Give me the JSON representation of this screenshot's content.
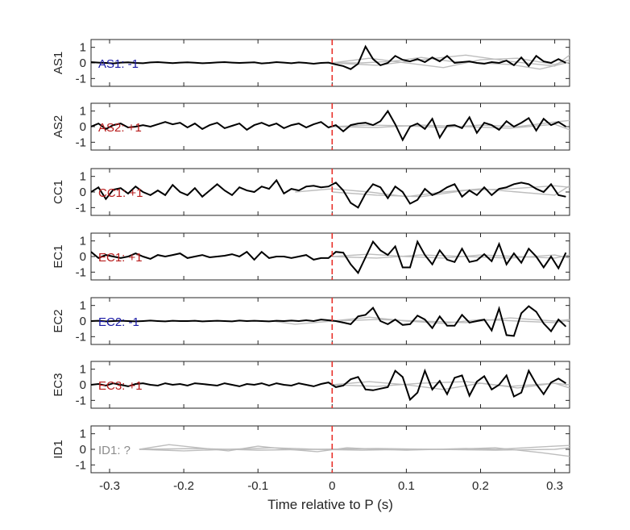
{
  "figure": {
    "xlabel": "Time relative to P (s)",
    "xlim": [
      -0.325,
      0.32
    ],
    "xticks": [
      -0.3,
      -0.2,
      -0.1,
      0,
      0.1,
      0.2,
      0.3
    ],
    "xtick_labels": [
      "-0.3",
      "-0.2",
      "-0.1",
      "0",
      "0.1",
      "0.2",
      "0.3"
    ],
    "ylim": [
      -1.5,
      1.5
    ],
    "yticks": [
      1,
      0,
      -1
    ],
    "ytick_labels": [
      "1",
      "0",
      "-1"
    ],
    "colors": {
      "trace": "#000000",
      "overlay": "#bdbdbd",
      "marker": "#e8302a",
      "negative": "#1b1ba6",
      "positive": "#b81c1c",
      "unknown": "#8c8c8c",
      "axis": "#262626"
    }
  },
  "chart_data": [
    {
      "type": "line",
      "panel": "AS1",
      "ylabel": "AS1",
      "polarity_label": "AS1: -1",
      "polarity": "negative",
      "marker_x": 0,
      "x": [
        -0.325,
        -0.315,
        -0.305,
        -0.295,
        -0.285,
        -0.275,
        -0.265,
        -0.255,
        -0.245,
        -0.235,
        -0.225,
        -0.215,
        -0.205,
        -0.195,
        -0.185,
        -0.175,
        -0.165,
        -0.155,
        -0.145,
        -0.135,
        -0.125,
        -0.115,
        -0.105,
        -0.095,
        -0.085,
        -0.075,
        -0.065,
        -0.055,
        -0.045,
        -0.035,
        -0.025,
        -0.015,
        -0.005,
        0.005,
        0.015,
        0.025,
        0.035,
        0.045,
        0.055,
        0.065,
        0.075,
        0.085,
        0.095,
        0.105,
        0.115,
        0.125,
        0.135,
        0.145,
        0.155,
        0.165,
        0.175,
        0.185,
        0.195,
        0.205,
        0.215,
        0.225,
        0.235,
        0.245,
        0.255,
        0.265,
        0.275,
        0.285,
        0.295,
        0.305,
        0.315
      ],
      "values": [
        0.05,
        0.02,
        0.0,
        -0.03,
        0.02,
        0.04,
        0.0,
        -0.02,
        0.03,
        0.05,
        0.02,
        -0.01,
        0.02,
        0.04,
        0.01,
        -0.02,
        0.0,
        0.03,
        0.05,
        0.02,
        0.0,
        0.02,
        0.04,
        -0.03,
        0.0,
        0.05,
        0.02,
        -0.02,
        0.03,
        0.0,
        -0.05,
        0.0,
        0.02,
        -0.1,
        -0.2,
        -0.4,
        -0.05,
        1.05,
        0.25,
        -0.15,
        0.0,
        0.45,
        0.2,
        0.1,
        0.25,
        0.05,
        0.35,
        0.1,
        0.45,
        0.0,
        0.05,
        0.1,
        0.0,
        -0.05,
        0.05,
        0.0,
        0.15,
        -0.15,
        0.35,
        -0.2,
        0.45,
        0.1,
        0.0,
        0.25,
        0.0
      ],
      "overlay": [
        {
          "x": [
            0.0,
            0.04,
            0.08,
            0.12,
            0.16,
            0.2,
            0.24,
            0.28,
            0.32
          ],
          "values": [
            0.0,
            0.0,
            0.1,
            0.35,
            0.1,
            0.0,
            -0.1,
            -0.4,
            0.05
          ]
        },
        {
          "x": [
            0.0,
            0.05,
            0.1,
            0.15,
            0.2,
            0.25,
            0.3,
            0.32
          ],
          "values": [
            0.0,
            0.3,
            0.0,
            -0.3,
            0.2,
            0.3,
            -0.1,
            0.2
          ]
        },
        {
          "x": [
            0.0,
            0.06,
            0.12,
            0.18,
            0.24,
            0.3,
            0.32
          ],
          "values": [
            0.0,
            -0.15,
            0.2,
            0.5,
            0.1,
            -0.2,
            0.5
          ]
        }
      ]
    },
    {
      "type": "line",
      "panel": "AS2",
      "ylabel": "AS2",
      "polarity_label": "AS2: +1",
      "polarity": "positive",
      "marker_x": 0,
      "x": [
        -0.325,
        -0.315,
        -0.305,
        -0.295,
        -0.285,
        -0.275,
        -0.265,
        -0.255,
        -0.245,
        -0.235,
        -0.225,
        -0.215,
        -0.205,
        -0.195,
        -0.185,
        -0.175,
        -0.165,
        -0.155,
        -0.145,
        -0.135,
        -0.125,
        -0.115,
        -0.105,
        -0.095,
        -0.085,
        -0.075,
        -0.065,
        -0.055,
        -0.045,
        -0.035,
        -0.025,
        -0.015,
        -0.005,
        0.005,
        0.015,
        0.025,
        0.035,
        0.045,
        0.055,
        0.065,
        0.075,
        0.085,
        0.095,
        0.105,
        0.115,
        0.125,
        0.135,
        0.145,
        0.155,
        0.165,
        0.175,
        0.185,
        0.195,
        0.205,
        0.215,
        0.225,
        0.235,
        0.245,
        0.255,
        0.265,
        0.275,
        0.285,
        0.295,
        0.305,
        0.315
      ],
      "values": [
        0.0,
        0.2,
        -0.15,
        0.1,
        0.2,
        -0.05,
        0.0,
        0.1,
        0.0,
        0.15,
        0.3,
        0.15,
        0.25,
        -0.05,
        0.2,
        -0.15,
        0.1,
        0.25,
        -0.1,
        0.05,
        0.2,
        -0.2,
        0.1,
        0.25,
        0.05,
        0.2,
        -0.1,
        0.1,
        0.2,
        -0.05,
        0.15,
        0.3,
        -0.05,
        0.1,
        -0.3,
        0.1,
        0.2,
        0.25,
        0.1,
        0.35,
        1.0,
        0.15,
        -0.85,
        0.0,
        0.2,
        -0.15,
        0.5,
        -0.7,
        0.05,
        0.1,
        -0.1,
        0.6,
        -0.4,
        0.25,
        0.1,
        -0.2,
        0.35,
        0.0,
        0.25,
        0.55,
        -0.25,
        0.5,
        0.1,
        0.3,
        0.0
      ],
      "overlay": [
        {
          "x": [
            0.0,
            0.05,
            0.1,
            0.15,
            0.2,
            0.25,
            0.3,
            0.32
          ],
          "values": [
            0.0,
            0.1,
            0.05,
            -0.05,
            0.1,
            0.0,
            0.3,
            0.4
          ]
        },
        {
          "x": [
            0.0,
            0.06,
            0.12,
            0.18,
            0.24,
            0.3,
            0.32
          ],
          "values": [
            0.0,
            -0.05,
            0.1,
            0.0,
            -0.1,
            0.15,
            -0.2
          ]
        }
      ]
    },
    {
      "type": "line",
      "panel": "CC1",
      "ylabel": "CC1",
      "polarity_label": "CC1: +1",
      "polarity": "positive",
      "marker_x": 0,
      "x": [
        -0.325,
        -0.315,
        -0.305,
        -0.295,
        -0.285,
        -0.275,
        -0.265,
        -0.255,
        -0.245,
        -0.235,
        -0.225,
        -0.215,
        -0.205,
        -0.195,
        -0.185,
        -0.175,
        -0.165,
        -0.155,
        -0.145,
        -0.135,
        -0.125,
        -0.115,
        -0.105,
        -0.095,
        -0.085,
        -0.075,
        -0.065,
        -0.055,
        -0.045,
        -0.035,
        -0.025,
        -0.015,
        -0.005,
        0.005,
        0.015,
        0.025,
        0.035,
        0.045,
        0.055,
        0.065,
        0.075,
        0.085,
        0.095,
        0.105,
        0.115,
        0.125,
        0.135,
        0.145,
        0.155,
        0.165,
        0.175,
        0.185,
        0.195,
        0.205,
        0.215,
        0.225,
        0.235,
        0.245,
        0.255,
        0.265,
        0.275,
        0.285,
        0.295,
        0.305,
        0.315
      ],
      "values": [
        0.0,
        0.3,
        -0.45,
        0.15,
        0.25,
        -0.1,
        0.35,
        0.0,
        -0.2,
        0.1,
        -0.2,
        0.45,
        0.0,
        -0.2,
        0.25,
        -0.3,
        0.1,
        0.5,
        0.1,
        -0.2,
        0.3,
        0.1,
        0.0,
        0.35,
        0.2,
        0.75,
        -0.1,
        0.2,
        0.1,
        0.35,
        0.4,
        0.3,
        0.35,
        0.6,
        0.1,
        -0.7,
        -1.0,
        -0.1,
        0.5,
        0.3,
        -0.4,
        0.35,
        0.0,
        -0.75,
        -0.5,
        0.2,
        -0.2,
        0.0,
        0.3,
        0.5,
        -0.3,
        0.1,
        -0.2,
        0.3,
        -0.2,
        0.2,
        0.3,
        0.5,
        0.6,
        0.5,
        0.2,
        0.0,
        0.5,
        -0.2,
        -0.3
      ],
      "overlay": [
        {
          "x": [
            -0.05,
            0.0,
            0.05,
            0.1,
            0.15,
            0.2,
            0.25,
            0.3,
            0.32
          ],
          "values": [
            0.0,
            0.2,
            0.0,
            -0.3,
            0.0,
            0.2,
            0.0,
            -0.2,
            0.4
          ]
        },
        {
          "x": [
            0.0,
            0.06,
            0.12,
            0.18,
            0.24,
            0.3,
            0.32
          ],
          "values": [
            0.0,
            -0.2,
            -0.3,
            0.1,
            0.2,
            0.4,
            0.3
          ]
        }
      ]
    },
    {
      "type": "line",
      "panel": "EC1",
      "ylabel": "EC1",
      "polarity_label": "EC1: +1",
      "polarity": "positive",
      "marker_x": 0,
      "x": [
        -0.325,
        -0.315,
        -0.305,
        -0.295,
        -0.285,
        -0.275,
        -0.265,
        -0.255,
        -0.245,
        -0.235,
        -0.225,
        -0.215,
        -0.205,
        -0.195,
        -0.185,
        -0.175,
        -0.165,
        -0.155,
        -0.145,
        -0.135,
        -0.125,
        -0.115,
        -0.105,
        -0.095,
        -0.085,
        -0.075,
        -0.065,
        -0.055,
        -0.045,
        -0.035,
        -0.025,
        -0.015,
        -0.005,
        0.005,
        0.015,
        0.025,
        0.035,
        0.045,
        0.055,
        0.065,
        0.075,
        0.085,
        0.095,
        0.105,
        0.115,
        0.125,
        0.135,
        0.145,
        0.155,
        0.165,
        0.175,
        0.185,
        0.195,
        0.205,
        0.215,
        0.225,
        0.235,
        0.245,
        0.255,
        0.265,
        0.275,
        0.285,
        0.295,
        0.305,
        0.315
      ],
      "values": [
        0.3,
        -0.1,
        0.1,
        0.0,
        -0.1,
        0.0,
        0.2,
        0.0,
        -0.15,
        0.1,
        0.0,
        0.1,
        0.2,
        -0.1,
        0.0,
        0.1,
        -0.05,
        0.0,
        0.05,
        0.15,
        0.0,
        0.3,
        -0.2,
        0.3,
        -0.1,
        0.0,
        0.0,
        -0.1,
        0.0,
        0.1,
        -0.2,
        -0.1,
        -0.1,
        0.3,
        0.25,
        -0.5,
        -1.05,
        -0.05,
        0.95,
        0.4,
        0.1,
        0.65,
        -0.7,
        -0.7,
        0.95,
        0.1,
        -0.5,
        0.4,
        -0.2,
        -0.35,
        0.5,
        -0.35,
        -0.25,
        0.15,
        -0.3,
        0.8,
        -0.5,
        0.2,
        -0.4,
        0.5,
        0.0,
        -0.7,
        0.0,
        -0.75,
        0.25
      ],
      "overlay": [
        {
          "x": [
            0.0,
            0.05,
            0.1,
            0.15,
            0.2,
            0.25,
            0.3,
            0.32
          ],
          "values": [
            0.0,
            0.15,
            0.0,
            -0.1,
            0.1,
            0.0,
            -0.1,
            0.1
          ]
        },
        {
          "x": [
            0.0,
            0.06,
            0.12,
            0.18,
            0.24,
            0.3,
            0.32
          ],
          "values": [
            0.0,
            -0.1,
            0.1,
            0.0,
            -0.1,
            0.1,
            -0.1
          ]
        }
      ]
    },
    {
      "type": "line",
      "panel": "EC2",
      "ylabel": "EC2",
      "polarity_label": "EC2: -1",
      "polarity": "negative",
      "marker_x": 0,
      "x": [
        -0.325,
        -0.315,
        -0.305,
        -0.295,
        -0.285,
        -0.275,
        -0.265,
        -0.255,
        -0.245,
        -0.235,
        -0.225,
        -0.215,
        -0.205,
        -0.195,
        -0.185,
        -0.175,
        -0.165,
        -0.155,
        -0.145,
        -0.135,
        -0.125,
        -0.115,
        -0.105,
        -0.095,
        -0.085,
        -0.075,
        -0.065,
        -0.055,
        -0.045,
        -0.035,
        -0.025,
        -0.015,
        -0.005,
        0.005,
        0.015,
        0.025,
        0.035,
        0.045,
        0.055,
        0.065,
        0.075,
        0.085,
        0.095,
        0.105,
        0.115,
        0.125,
        0.135,
        0.145,
        0.155,
        0.165,
        0.175,
        0.185,
        0.195,
        0.205,
        0.215,
        0.225,
        0.235,
        0.245,
        0.255,
        0.265,
        0.275,
        0.285,
        0.295,
        0.305,
        0.315
      ],
      "values": [
        0.0,
        0.02,
        -0.02,
        0.0,
        0.02,
        0.0,
        -0.02,
        0.0,
        0.03,
        0.0,
        -0.02,
        0.02,
        0.0,
        0.0,
        0.02,
        -0.02,
        0.0,
        0.02,
        0.0,
        -0.02,
        0.03,
        0.0,
        0.02,
        0.0,
        -0.02,
        0.02,
        0.0,
        0.03,
        0.0,
        0.05,
        0.0,
        0.1,
        0.05,
        0.0,
        -0.1,
        -0.2,
        0.3,
        0.4,
        0.85,
        0.0,
        -0.2,
        0.1,
        -0.25,
        -0.2,
        0.35,
        0.1,
        -0.45,
        0.3,
        -0.3,
        -0.3,
        0.4,
        -0.1,
        0.0,
        0.1,
        -0.6,
        0.8,
        -0.9,
        -0.95,
        0.5,
        0.95,
        0.6,
        -0.15,
        -0.65,
        0.1,
        -0.35
      ],
      "overlay": [
        {
          "x": [
            -0.08,
            -0.05,
            0.0,
            0.05,
            0.1,
            0.15,
            0.2,
            0.25,
            0.3,
            0.32
          ],
          "values": [
            0.0,
            -0.2,
            0.0,
            0.25,
            0.0,
            -0.15,
            0.1,
            0.0,
            -0.1,
            0.05
          ]
        },
        {
          "x": [
            0.0,
            0.06,
            0.12,
            0.18,
            0.24,
            0.3,
            0.32
          ],
          "values": [
            0.0,
            0.1,
            0.0,
            -0.1,
            0.2,
            0.0,
            0.1
          ]
        }
      ]
    },
    {
      "type": "line",
      "panel": "EC3",
      "ylabel": "EC3",
      "polarity_label": "EC3: +1",
      "polarity": "positive",
      "marker_x": 0,
      "x": [
        -0.325,
        -0.315,
        -0.305,
        -0.295,
        -0.285,
        -0.275,
        -0.265,
        -0.255,
        -0.245,
        -0.235,
        -0.225,
        -0.215,
        -0.205,
        -0.195,
        -0.185,
        -0.175,
        -0.165,
        -0.155,
        -0.145,
        -0.135,
        -0.125,
        -0.115,
        -0.105,
        -0.095,
        -0.085,
        -0.075,
        -0.065,
        -0.055,
        -0.045,
        -0.035,
        -0.025,
        -0.015,
        -0.005,
        0.005,
        0.015,
        0.025,
        0.035,
        0.045,
        0.055,
        0.065,
        0.075,
        0.085,
        0.095,
        0.105,
        0.115,
        0.125,
        0.135,
        0.145,
        0.155,
        0.165,
        0.175,
        0.185,
        0.195,
        0.205,
        0.215,
        0.225,
        0.235,
        0.245,
        0.255,
        0.265,
        0.275,
        0.285,
        0.295,
        0.305,
        0.315
      ],
      "values": [
        0.0,
        0.05,
        -0.05,
        0.1,
        0.0,
        -0.1,
        0.05,
        0.1,
        0.0,
        -0.05,
        0.1,
        0.0,
        0.05,
        -0.05,
        0.1,
        0.05,
        0.0,
        -0.05,
        0.1,
        0.0,
        -0.1,
        0.05,
        0.0,
        0.1,
        -0.05,
        0.1,
        0.0,
        -0.05,
        0.1,
        0.0,
        -0.1,
        0.05,
        0.15,
        -0.15,
        -0.05,
        0.35,
        0.5,
        -0.3,
        -0.35,
        -0.25,
        -0.15,
        0.9,
        0.5,
        -0.95,
        -0.5,
        0.9,
        -0.3,
        0.25,
        -0.6,
        0.45,
        0.6,
        -0.7,
        0.2,
        0.55,
        -0.3,
        0.0,
        0.6,
        -0.75,
        -0.5,
        0.9,
        0.05,
        -0.6,
        0.15,
        0.4,
        0.1
      ],
      "overlay": [
        {
          "x": [
            0.0,
            0.05,
            0.1,
            0.15,
            0.2,
            0.25,
            0.3,
            0.32
          ],
          "values": [
            0.0,
            0.2,
            0.0,
            -0.3,
            0.1,
            -0.2,
            0.1,
            0.0
          ]
        },
        {
          "x": [
            0.0,
            0.06,
            0.12,
            0.18,
            0.24,
            0.3,
            0.32
          ],
          "values": [
            0.0,
            -0.1,
            0.1,
            0.2,
            -0.1,
            0.1,
            -0.2
          ]
        }
      ]
    },
    {
      "type": "line",
      "panel": "ID1",
      "ylabel": "ID1",
      "polarity_label": "ID1: ?",
      "polarity": "unknown",
      "marker_x": 0,
      "x": [],
      "values": [],
      "overlay": [
        {
          "x": [
            -0.26,
            -0.22,
            -0.18,
            -0.14,
            -0.1,
            -0.06,
            -0.02,
            0.02,
            0.06,
            0.1,
            0.14,
            0.18,
            0.22,
            0.26,
            0.3,
            0.32
          ],
          "values": [
            0.0,
            0.3,
            0.1,
            -0.1,
            0.2,
            0.0,
            -0.15,
            0.1,
            0.0,
            -0.05,
            0.0,
            0.05,
            0.0,
            0.1,
            0.2,
            0.25
          ]
        },
        {
          "x": [
            -0.26,
            -0.2,
            -0.14,
            -0.08,
            -0.02,
            0.04,
            0.1,
            0.16,
            0.22,
            0.28,
            0.32
          ],
          "values": [
            0.0,
            -0.1,
            0.0,
            0.1,
            0.0,
            -0.05,
            0.0,
            0.0,
            0.1,
            -0.2,
            -0.45
          ]
        },
        {
          "x": [
            -0.26,
            -0.18,
            -0.1,
            -0.02,
            0.06,
            0.14,
            0.22,
            0.3,
            0.32
          ],
          "values": [
            0.0,
            0.05,
            -0.05,
            0.0,
            0.05,
            0.0,
            -0.05,
            0.0,
            0.1
          ]
        }
      ]
    }
  ]
}
